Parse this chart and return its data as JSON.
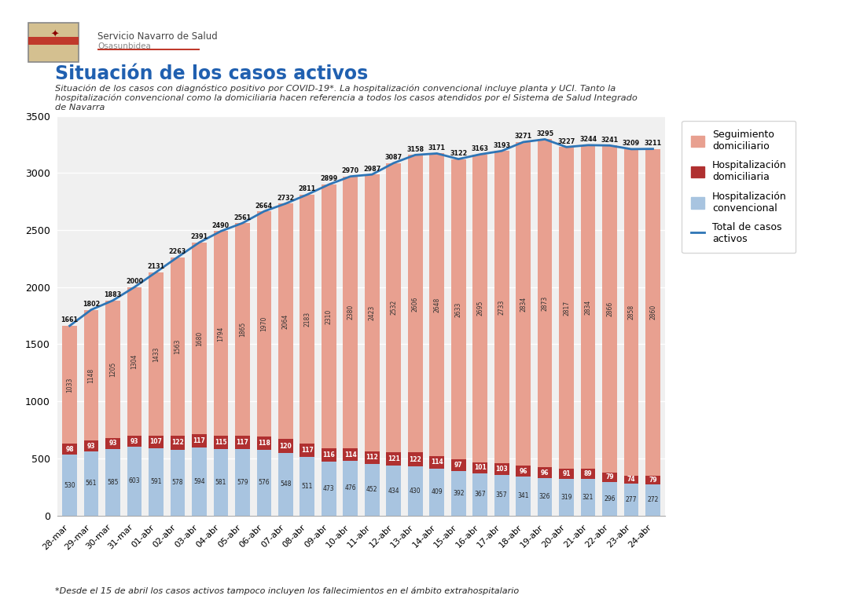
{
  "dates": [
    "28-mar",
    "29-mar",
    "30-mar",
    "31-mar",
    "01-abr",
    "02-abr",
    "03-abr",
    "04-abr",
    "05-abr",
    "06-abr",
    "07-abr",
    "08-abr",
    "09-abr",
    "10-abr",
    "11-abr",
    "12-abr",
    "13-abr",
    "14-abr",
    "15-abr",
    "16-abr",
    "17-abr",
    "18-abr",
    "19-abr",
    "20-abr",
    "21-abr",
    "22-abr",
    "23-abr",
    "24-abr"
  ],
  "seguimiento_domiciliario": [
    1033,
    1148,
    1205,
    1304,
    1433,
    1563,
    1680,
    1794,
    1865,
    1970,
    2064,
    2183,
    2310,
    2380,
    2423,
    2532,
    2606,
    2648,
    2633,
    2695,
    2733,
    2834,
    2873,
    2817,
    2834,
    2866,
    2858,
    2860
  ],
  "hospitalizacion_domiciliaria": [
    98,
    93,
    93,
    93,
    107,
    122,
    117,
    115,
    117,
    118,
    120,
    117,
    116,
    114,
    112,
    121,
    122,
    114,
    97,
    101,
    103,
    96,
    96,
    91,
    89,
    79,
    74,
    79
  ],
  "hospitalizacion_convencional": [
    530,
    561,
    585,
    603,
    591,
    578,
    594,
    581,
    579,
    576,
    548,
    511,
    473,
    476,
    452,
    434,
    430,
    409,
    392,
    367,
    357,
    341,
    326,
    319,
    321,
    296,
    277,
    272
  ],
  "total_casos_activos": [
    1661,
    1802,
    1883,
    2000,
    2131,
    2263,
    2391,
    2490,
    2561,
    2664,
    2732,
    2811,
    2899,
    2970,
    2987,
    3087,
    3158,
    3171,
    3122,
    3163,
    3193,
    3271,
    3295,
    3227,
    3244,
    3241,
    3209,
    3211
  ],
  "color_seguimiento": "#e8a090",
  "color_hospitalizacion_dom": "#b03030",
  "color_hospitalizacion_conv": "#a8c4e0",
  "color_total_line": "#2e75b6",
  "title": "Situación de los casos activos",
  "subtitle_line1": "Situación de los casos con diagnóstico positivo por COVID-19*. La hospitalización convencional incluye planta y UCI. Tanto la",
  "subtitle_line2": "hospitalización convencional como la domiciliaria hacen referencia a todos los casos atendidos por el Sistema de Salud Integrado",
  "subtitle_line3": "de Navarra",
  "footnote": "*Desde el 15 de abril los casos activos tampoco incluyen los fallecimientos en el ámbito extrahospitalario",
  "ylim": [
    0,
    3500
  ],
  "yticks": [
    0,
    500,
    1000,
    1500,
    2000,
    2500,
    3000,
    3500
  ],
  "legend_seguimiento": "Seguimiento\ndomiciliario",
  "legend_hosp_dom": "Hospitalización\ndomiciliaria",
  "legend_hosp_conv": "Hospitalización\nconvencional",
  "legend_total": "Total de casos\nactivos",
  "background_color": "#ffffff",
  "chart_bg": "#f0f0f0",
  "logo_text1": "Servicio Navarro de Salud",
  "logo_text2": "Osasunbidea"
}
